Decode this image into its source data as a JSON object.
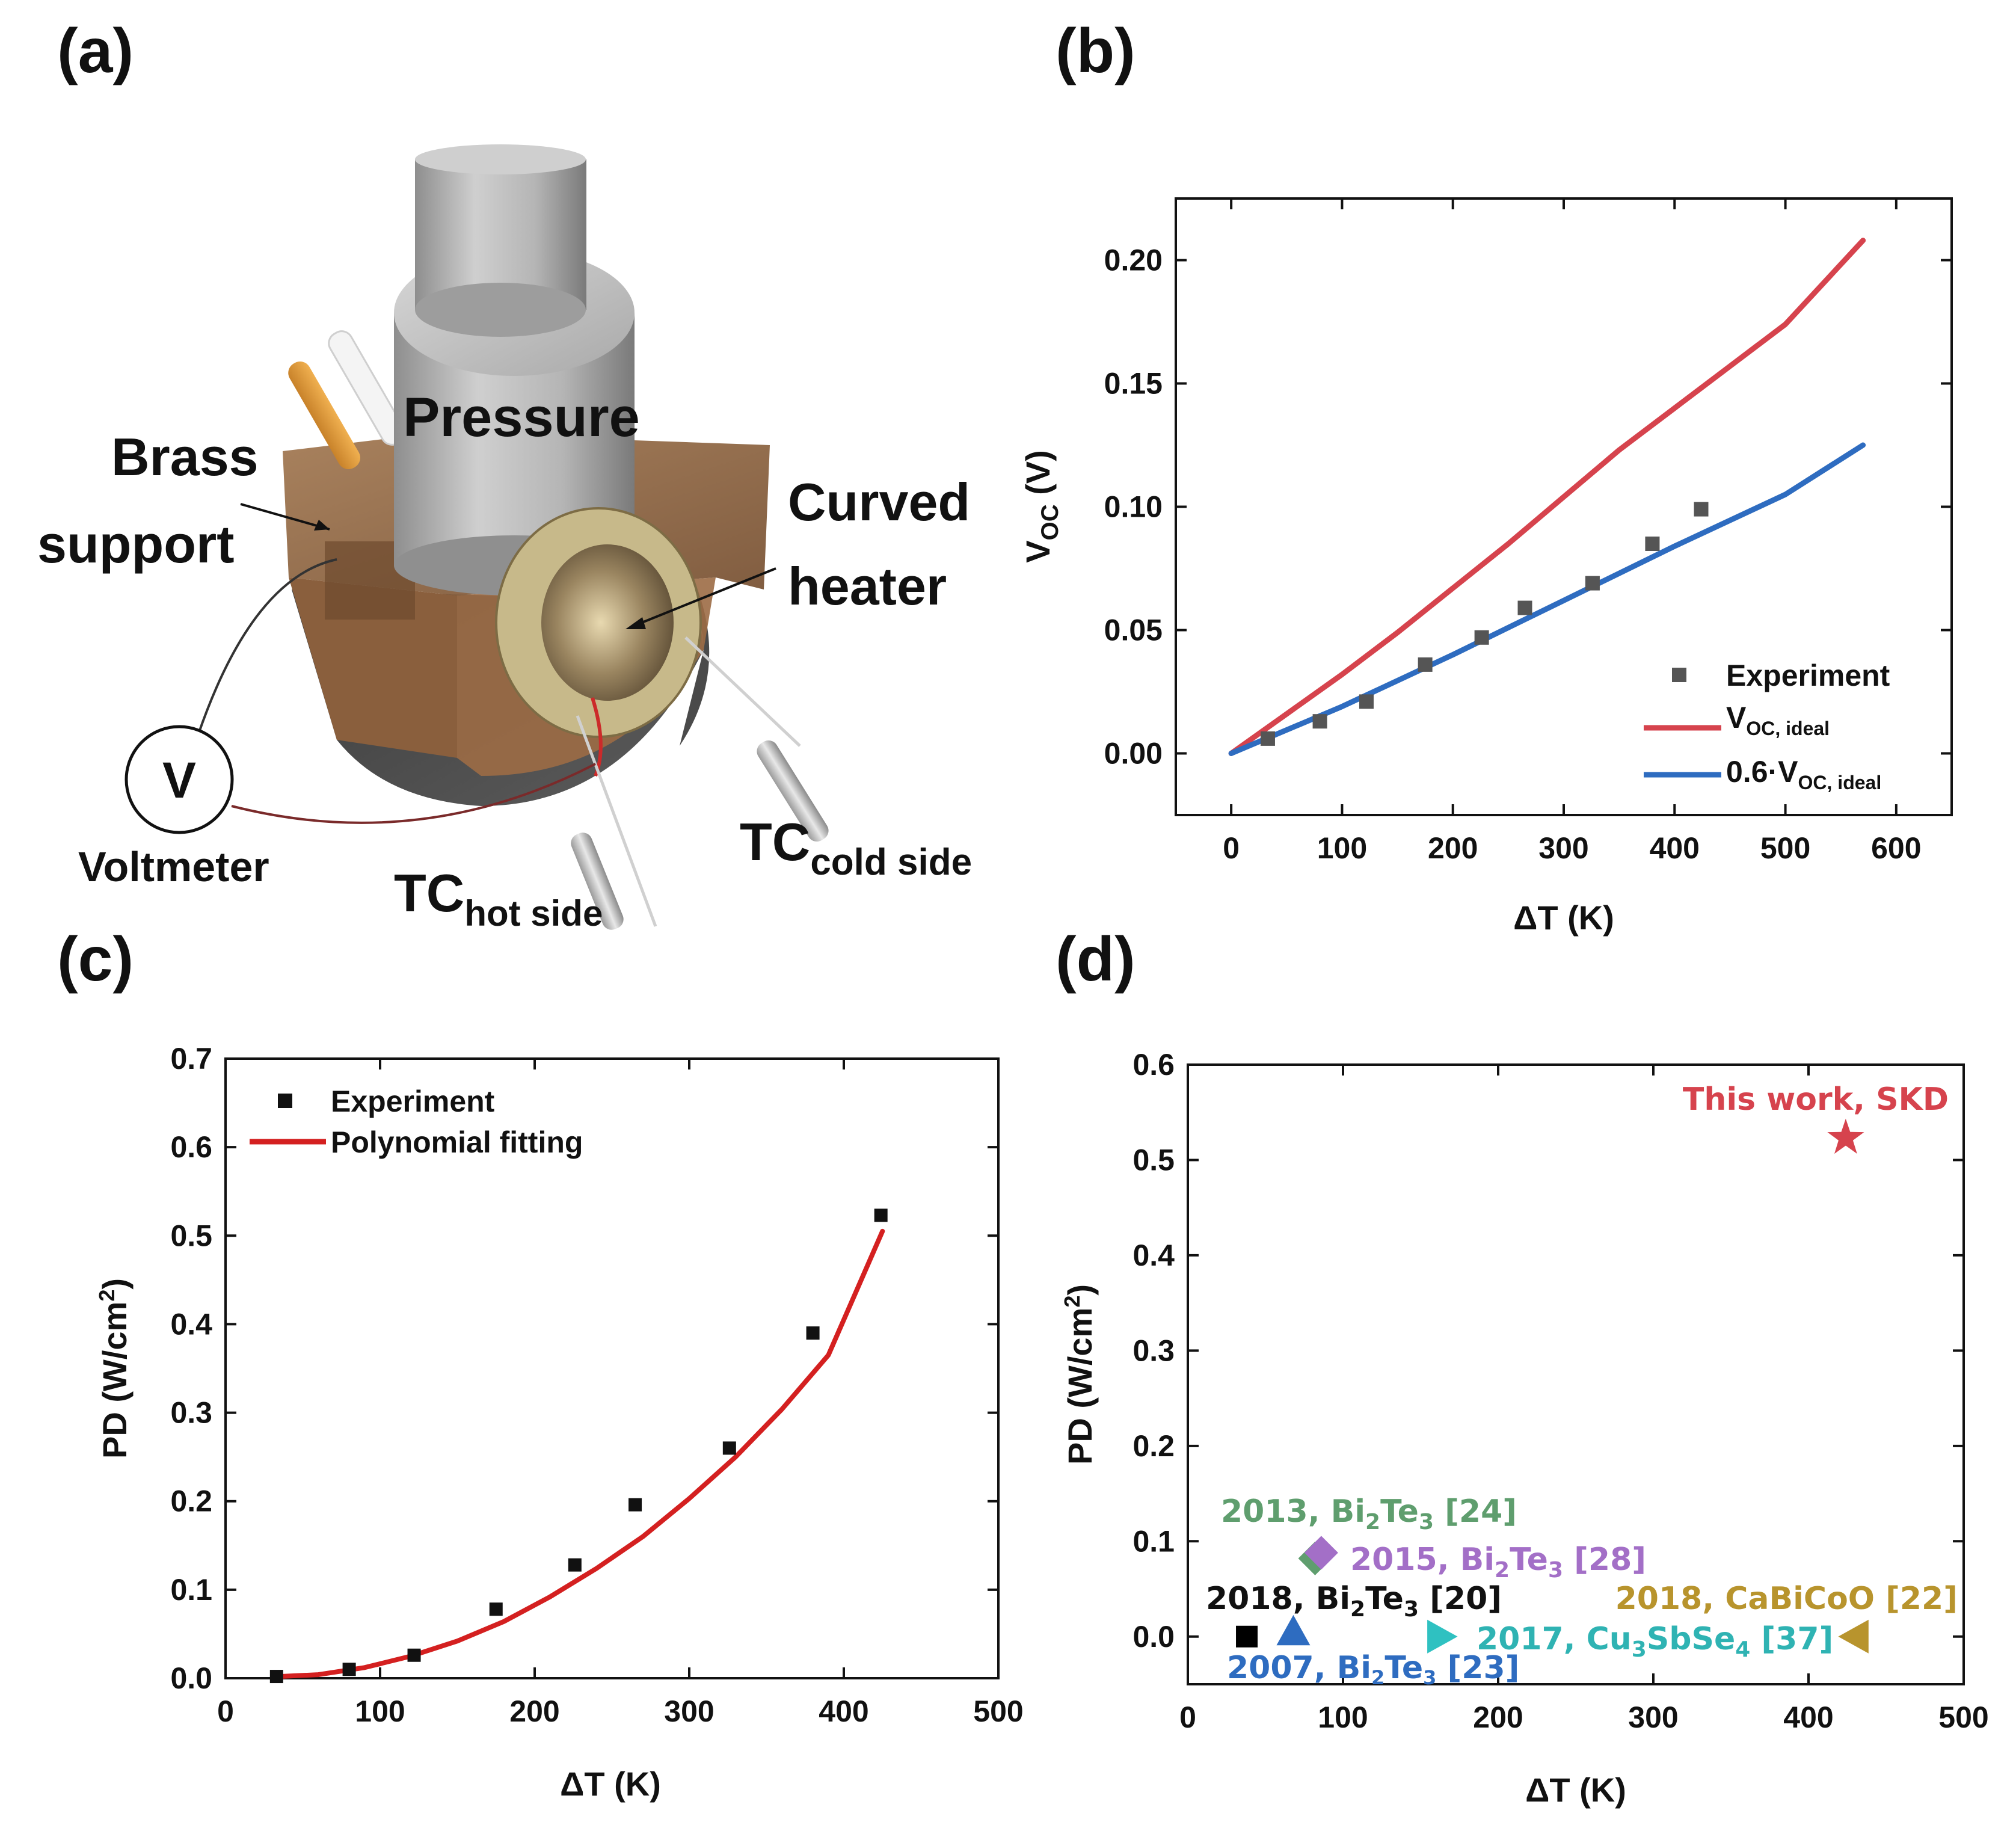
{
  "panel_labels": {
    "a": "(a)",
    "b": "(b)",
    "c": "(c)",
    "d": "(d)"
  },
  "schematic": {
    "pressure": "Pressure",
    "brass_line1": "Brass",
    "brass_line2": "support",
    "heater_line1": "Curved",
    "heater_line2": "heater",
    "voltmeter_symbol": "V",
    "voltmeter": "Voltmeter",
    "tc_hot_main": "TC",
    "tc_hot_sub": "hot side",
    "tc_cold_main": "TC",
    "tc_cold_sub": "cold side"
  },
  "colors": {
    "red": "#d6434d",
    "blue": "#2e6cc0",
    "fit_red": "#d42020",
    "grey_marker": "#555555"
  },
  "chart_data": [
    {
      "id": "b",
      "type": "line",
      "xlabel": "ΔT (K)",
      "ylabel_main": "V",
      "ylabel_sub": "OC",
      "ylabel_unit": " (V)",
      "xlim": [
        -50,
        650
      ],
      "ylim": [
        -0.025,
        0.225
      ],
      "xticks": [
        0,
        100,
        200,
        300,
        400,
        500,
        600
      ],
      "xtick_labels": [
        "0",
        "100",
        "200",
        "300",
        "400",
        "500",
        "600"
      ],
      "yticks": [
        0.0,
        0.05,
        0.1,
        0.15,
        0.2
      ],
      "ytick_labels": [
        "0.00",
        "0.05",
        "0.10",
        "0.15",
        "0.20"
      ],
      "series": [
        {
          "name": "Experiment",
          "kind": "scatter",
          "x": [
            33,
            80,
            122,
            175,
            226,
            265,
            326,
            380,
            424
          ],
          "y": [
            0.006,
            0.013,
            0.021,
            0.036,
            0.047,
            0.059,
            0.069,
            0.085,
            0.099
          ]
        },
        {
          "name": "V",
          "name_sub": "OC, ideal",
          "kind": "line",
          "x": [
            0,
            50,
            100,
            150,
            200,
            250,
            300,
            350,
            400,
            450,
            500,
            570
          ],
          "y": [
            0.0,
            0.016,
            0.032,
            0.049,
            0.067,
            0.085,
            0.104,
            0.123,
            0.14,
            0.157,
            0.174,
            0.208
          ]
        },
        {
          "name": "0.6·V",
          "name_sub": "OC, ideal",
          "kind": "line",
          "x": [
            0,
            100,
            200,
            300,
            400,
            500,
            570
          ],
          "y": [
            0.0,
            0.019,
            0.04,
            0.062,
            0.084,
            0.105,
            0.125
          ]
        }
      ]
    },
    {
      "id": "c",
      "type": "scatter",
      "xlabel": "ΔT (K)",
      "ylabel_main": "PD (W/cm",
      "ylabel_sup": "2",
      "ylabel_end": ")",
      "xlim": [
        0,
        500
      ],
      "ylim": [
        0,
        0.7
      ],
      "xticks": [
        0,
        100,
        200,
        300,
        400,
        500
      ],
      "xtick_labels": [
        "0",
        "100",
        "200",
        "300",
        "400",
        "500"
      ],
      "yticks": [
        0.0,
        0.1,
        0.2,
        0.3,
        0.4,
        0.5,
        0.6,
        0.7
      ],
      "ytick_labels": [
        "0.0",
        "0.1",
        "0.2",
        "0.3",
        "0.4",
        "0.5",
        "0.6",
        "0.7"
      ],
      "series": [
        {
          "name": "Experiment",
          "kind": "scatter",
          "x": [
            33,
            80,
            122,
            175,
            226,
            265,
            326,
            380,
            424
          ],
          "y": [
            0.002,
            0.01,
            0.026,
            0.078,
            0.128,
            0.196,
            0.26,
            0.39,
            0.523
          ]
        },
        {
          "name": "Polynomial fitting",
          "kind": "line",
          "x": [
            35,
            60,
            90,
            120,
            150,
            180,
            210,
            240,
            270,
            300,
            330,
            360,
            390,
            425
          ],
          "y": [
            0.002,
            0.004,
            0.012,
            0.025,
            0.042,
            0.064,
            0.092,
            0.124,
            0.16,
            0.203,
            0.25,
            0.304,
            0.365,
            0.505
          ]
        }
      ]
    },
    {
      "id": "d",
      "type": "scatter",
      "xlabel": "ΔT (K)",
      "ylabel_main": "PD (W/cm",
      "ylabel_sup": "2",
      "ylabel_end": ")",
      "xlim": [
        0,
        500
      ],
      "ylim": [
        -0.05,
        0.6
      ],
      "xticks": [
        0,
        100,
        200,
        300,
        400,
        500
      ],
      "xtick_labels": [
        "0",
        "100",
        "200",
        "300",
        "400",
        "500"
      ],
      "yticks": [
        0.0,
        0.1,
        0.2,
        0.3,
        0.4,
        0.5,
        0.6
      ],
      "ytick_labels": [
        "0.0",
        "0.1",
        "0.2",
        "0.3",
        "0.4",
        "0.5",
        "0.6"
      ],
      "points": [
        {
          "label": "This work, SKD",
          "x": 424,
          "y": 0.523,
          "marker": "star",
          "color": "#d6434d"
        },
        {
          "label": "2013, Bi2Te3 [24]",
          "x": 82,
          "y": 0.082,
          "marker": "diamond",
          "color": "#5f9e6e"
        },
        {
          "label": "2015, Bi2Te3 [28]",
          "x": 86,
          "y": 0.088,
          "marker": "diamond",
          "color": "#a36fc7"
        },
        {
          "label": "2018, Bi2Te3 [20]",
          "x": 38,
          "y": 0.0,
          "marker": "square",
          "color": "#000000"
        },
        {
          "label": "2007, Bi2Te3 [23]",
          "x": 68,
          "y": 0.005,
          "marker": "triangle-up",
          "color": "#2e6cc0"
        },
        {
          "label": "2017, Cu3SbSe4 [37]",
          "x": 163,
          "y": 0.0,
          "marker": "triangle-right",
          "color": "#2fc1c1"
        },
        {
          "label": "2018, CaBiCoO [22]",
          "x": 430,
          "y": 0.0,
          "marker": "triangle-left",
          "color": "#b8942d"
        }
      ]
    }
  ],
  "legend_b": {
    "experiment": "Experiment",
    "ideal_main": "V",
    "ideal_sub": "OC, ideal",
    "scaled_main": "0.6·V",
    "scaled_sub": "OC, ideal"
  },
  "legend_c": {
    "experiment": "Experiment",
    "fit": "Polynomial fitting"
  },
  "annotations_d": {
    "this_work": "This work, SKD",
    "a2013": {
      "pre": "2013, Bi",
      "s1": "2",
      "mid": "Te",
      "s2": "3",
      "post": " [24]"
    },
    "a2015": {
      "pre": "2015, Bi",
      "s1": "2",
      "mid": "Te",
      "s2": "3",
      "post": " [28]"
    },
    "a2018": {
      "pre": "2018, Bi",
      "s1": "2",
      "mid": "Te",
      "s2": "3",
      "post": " [20]"
    },
    "a2007": {
      "pre": "2007, Bi",
      "s1": "2",
      "mid": "Te",
      "s2": "3",
      "post": " [23]"
    },
    "a2017": {
      "pre": "2017, Cu",
      "s1": "3",
      "mid": "SbSe",
      "s2": "4",
      "post": " [37]"
    },
    "a2018b": "2018, CaBiCoO [22]"
  }
}
